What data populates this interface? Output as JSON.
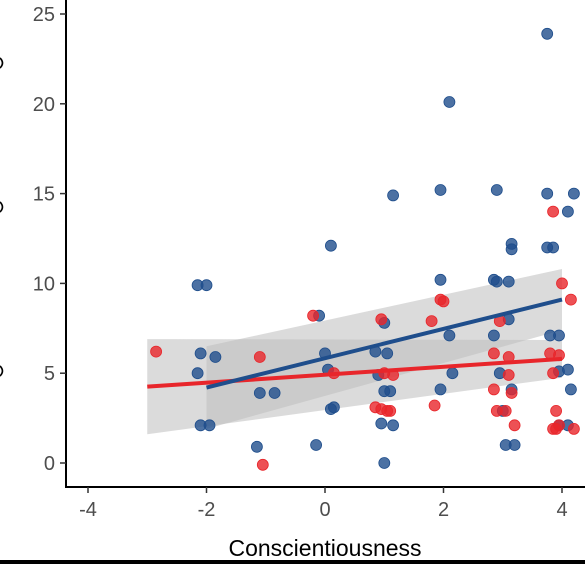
{
  "chart_data": {
    "type": "scatter",
    "title": "",
    "xlabel": "Conscientiousness",
    "ylabel": "",
    "xlim": [
      -4.6,
      4.4
    ],
    "ylim": [
      -1.2,
      25.5
    ],
    "x_ticks": [
      "-4",
      "-2",
      "0",
      "2",
      "4"
    ],
    "y_ticks": [
      "0",
      "5",
      "10",
      "15",
      "20",
      "25"
    ],
    "grid": false,
    "legend": "none",
    "series": [
      {
        "color": "#1f4e8c",
        "points": [
          [
            -2.15,
            9.9
          ],
          [
            -2.0,
            9.9
          ],
          [
            -2.15,
            5.0
          ],
          [
            -2.1,
            6.1
          ],
          [
            -1.85,
            5.9
          ],
          [
            -2.1,
            2.1
          ],
          [
            -1.95,
            2.1
          ],
          [
            -1.15,
            0.9
          ],
          [
            -1.1,
            3.9
          ],
          [
            -0.85,
            3.9
          ],
          [
            -0.15,
            1.0
          ],
          [
            0.1,
            12.1
          ],
          [
            0.1,
            3.0
          ],
          [
            0.15,
            3.1
          ],
          [
            0.05,
            5.2
          ],
          [
            0.0,
            6.1
          ],
          [
            -0.1,
            8.2
          ],
          [
            0.85,
            6.2
          ],
          [
            0.9,
            4.9
          ],
          [
            0.95,
            2.2
          ],
          [
            1.0,
            0.0
          ],
          [
            1.0,
            7.8
          ],
          [
            1.05,
            6.1
          ],
          [
            1.1,
            4.0
          ],
          [
            1.15,
            2.1
          ],
          [
            1.15,
            14.9
          ],
          [
            1.0,
            4.0
          ],
          [
            1.95,
            15.2
          ],
          [
            1.95,
            10.2
          ],
          [
            1.95,
            4.1
          ],
          [
            2.1,
            20.1
          ],
          [
            2.1,
            7.1
          ],
          [
            2.15,
            5.0
          ],
          [
            2.85,
            10.2
          ],
          [
            2.9,
            15.2
          ],
          [
            2.9,
            10.1
          ],
          [
            2.85,
            7.1
          ],
          [
            2.95,
            5.0
          ],
          [
            3.0,
            2.9
          ],
          [
            3.05,
            1.0
          ],
          [
            3.15,
            12.2
          ],
          [
            3.15,
            11.9
          ],
          [
            3.1,
            10.1
          ],
          [
            3.1,
            8.0
          ],
          [
            3.15,
            4.1
          ],
          [
            3.2,
            1.0
          ],
          [
            3.75,
            23.9
          ],
          [
            3.75,
            15.0
          ],
          [
            3.75,
            12.0
          ],
          [
            3.85,
            12.0
          ],
          [
            3.8,
            7.1
          ],
          [
            3.95,
            7.1
          ],
          [
            3.95,
            5.1
          ],
          [
            3.95,
            2.1
          ],
          [
            4.1,
            14.0
          ],
          [
            4.2,
            15.0
          ],
          [
            4.1,
            5.2
          ],
          [
            4.15,
            4.1
          ],
          [
            4.1,
            2.1
          ]
        ],
        "fit": {
          "x": [
            -2.0,
            4.0
          ],
          "y": [
            4.2,
            9.1
          ]
        },
        "band_upper": [
          6.5,
          10.8
        ],
        "band_lower": [
          1.9,
          7.4
        ]
      },
      {
        "color": "#e8262b",
        "points": [
          [
            -2.85,
            6.2
          ],
          [
            -1.1,
            5.9
          ],
          [
            -1.05,
            -0.1
          ],
          [
            -0.2,
            8.2
          ],
          [
            0.15,
            5.0
          ],
          [
            0.85,
            3.1
          ],
          [
            0.95,
            8.0
          ],
          [
            0.95,
            3.0
          ],
          [
            1.0,
            5.0
          ],
          [
            1.05,
            2.9
          ],
          [
            1.1,
            2.9
          ],
          [
            1.15,
            4.9
          ],
          [
            1.8,
            7.9
          ],
          [
            1.85,
            3.2
          ],
          [
            1.95,
            9.1
          ],
          [
            2.0,
            9.0
          ],
          [
            2.85,
            6.1
          ],
          [
            2.85,
            4.1
          ],
          [
            2.9,
            2.9
          ],
          [
            2.95,
            7.9
          ],
          [
            3.05,
            2.9
          ],
          [
            3.1,
            4.9
          ],
          [
            3.1,
            5.9
          ],
          [
            3.15,
            3.9
          ],
          [
            3.2,
            2.1
          ],
          [
            3.8,
            6.1
          ],
          [
            3.85,
            14.0
          ],
          [
            3.85,
            5.0
          ],
          [
            3.85,
            1.9
          ],
          [
            3.9,
            2.9
          ],
          [
            3.95,
            2.1
          ],
          [
            3.9,
            1.9
          ],
          [
            4.0,
            10.0
          ],
          [
            4.15,
            9.1
          ],
          [
            4.2,
            1.9
          ],
          [
            3.95,
            6.0
          ]
        ],
        "fit": {
          "x": [
            -3.0,
            4.0
          ],
          "y": [
            4.25,
            5.8
          ]
        },
        "band_upper": [
          6.9,
          6.85
        ],
        "band_lower": [
          1.6,
          4.75
        ]
      }
    ]
  }
}
